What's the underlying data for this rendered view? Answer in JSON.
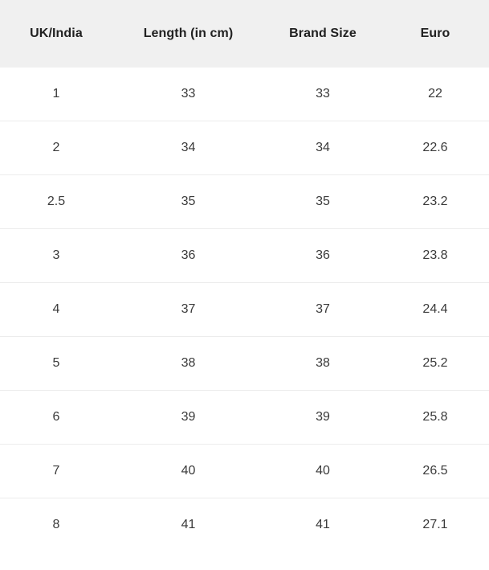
{
  "chart_data": {
    "type": "table",
    "title": "",
    "columns": [
      "UK/India",
      "Length (in cm)",
      "Brand Size",
      "Euro"
    ],
    "rows": [
      [
        "1",
        "33",
        "33",
        "22"
      ],
      [
        "2",
        "34",
        "34",
        "22.6"
      ],
      [
        "2.5",
        "35",
        "35",
        "23.2"
      ],
      [
        "3",
        "36",
        "36",
        "23.8"
      ],
      [
        "4",
        "37",
        "37",
        "24.4"
      ],
      [
        "5",
        "38",
        "38",
        "25.2"
      ],
      [
        "6",
        "39",
        "39",
        "25.8"
      ],
      [
        "7",
        "40",
        "40",
        "26.5"
      ],
      [
        "8",
        "41",
        "41",
        "27.1"
      ]
    ],
    "layout": {
      "header_alignment": "center",
      "cell_alignment": "center",
      "grid": "horizontal-dividers-only"
    }
  },
  "colors": {
    "header_bg": "#f0f0f0",
    "header_text": "#212121",
    "cell_text": "#3a3a3a",
    "row_divider": "#ececec",
    "page_bg": "#ffffff"
  }
}
